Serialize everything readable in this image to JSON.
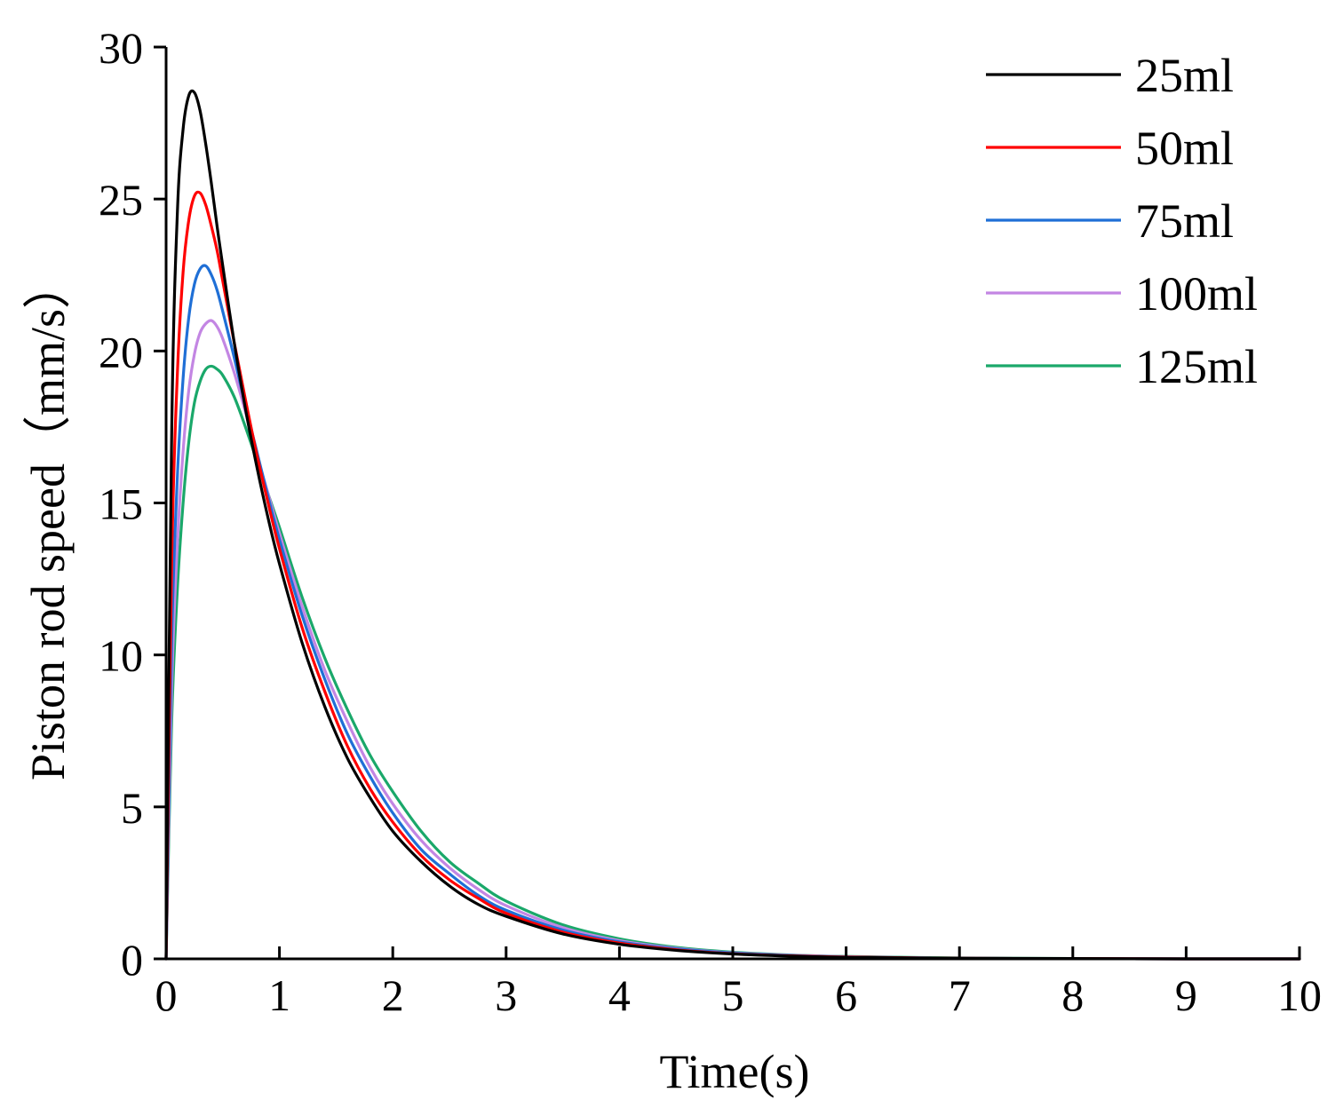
{
  "chart_data": {
    "type": "line",
    "title": "",
    "xlabel": "Time(s)",
    "ylabel": "Piston rod speed（mm/s）",
    "xlim": [
      0,
      10
    ],
    "ylim": [
      0,
      30
    ],
    "x_ticks": [
      "0",
      "1",
      "2",
      "3",
      "4",
      "5",
      "6",
      "7",
      "8",
      "9",
      "10"
    ],
    "y_ticks": [
      "0",
      "5",
      "10",
      "15",
      "20",
      "25",
      "30"
    ],
    "legend_position": "top-right",
    "grid": false,
    "x": [
      0,
      0.05,
      0.1,
      0.15,
      0.2,
      0.25,
      0.3,
      0.35,
      0.4,
      0.45,
      0.5,
      0.6,
      0.7,
      0.8,
      0.9,
      1.0,
      1.2,
      1.4,
      1.6,
      1.8,
      2.0,
      2.25,
      2.5,
      2.75,
      3.0,
      3.5,
      4.0,
      4.5,
      5.0,
      5.5,
      6.0,
      7.0,
      8.0,
      9.0,
      10.0
    ],
    "series": [
      {
        "name": "25ml",
        "color": "#000000",
        "values": [
          0,
          17.5,
          24.6,
          27.3,
          28.4,
          28.5,
          27.9,
          26.8,
          25.5,
          24.1,
          22.8,
          20.3,
          18.1,
          16.2,
          14.5,
          13.0,
          10.4,
          8.3,
          6.6,
          5.3,
          4.2,
          3.2,
          2.4,
          1.8,
          1.4,
          0.82,
          0.48,
          0.28,
          0.16,
          0.09,
          0.05,
          0.02,
          0.01,
          0.0,
          0.0
        ]
      },
      {
        "name": "50ml",
        "color": "#ff0000",
        "values": [
          0,
          13.2,
          19.3,
          22.6,
          24.3,
          25.1,
          25.2,
          24.8,
          24.1,
          23.3,
          22.3,
          20.3,
          18.4,
          16.6,
          15.0,
          13.5,
          10.9,
          8.8,
          7.0,
          5.6,
          4.5,
          3.4,
          2.6,
          2.0,
          1.5,
          0.88,
          0.52,
          0.3,
          0.17,
          0.1,
          0.06,
          0.02,
          0.01,
          0.0,
          0.0
        ]
      },
      {
        "name": "75ml",
        "color": "#1f6fd6",
        "values": [
          0,
          10.6,
          15.9,
          19.1,
          21.1,
          22.2,
          22.7,
          22.8,
          22.5,
          22.0,
          21.3,
          19.8,
          18.2,
          16.7,
          15.2,
          13.8,
          11.3,
          9.2,
          7.4,
          6.0,
          4.8,
          3.6,
          2.8,
          2.1,
          1.6,
          0.95,
          0.56,
          0.33,
          0.19,
          0.11,
          0.06,
          0.02,
          0.01,
          0.0,
          0.0
        ]
      },
      {
        "name": "100ml",
        "color": "#c386e3",
        "values": [
          0,
          9.0,
          13.7,
          16.7,
          18.7,
          19.9,
          20.6,
          20.9,
          21.0,
          20.8,
          20.4,
          19.3,
          18.0,
          16.6,
          15.3,
          14.0,
          11.6,
          9.5,
          7.8,
          6.3,
          5.1,
          3.9,
          3.0,
          2.3,
          1.75,
          1.03,
          0.6,
          0.35,
          0.2,
          0.12,
          0.07,
          0.02,
          0.01,
          0.0,
          0.0
        ]
      },
      {
        "name": "125ml",
        "color": "#1aa86a",
        "values": [
          0,
          7.9,
          12.2,
          15.0,
          17.0,
          18.3,
          19.0,
          19.4,
          19.5,
          19.4,
          19.2,
          18.5,
          17.5,
          16.4,
          15.3,
          14.2,
          11.9,
          9.9,
          8.2,
          6.7,
          5.5,
          4.2,
          3.2,
          2.5,
          1.9,
          1.12,
          0.66,
          0.38,
          0.22,
          0.13,
          0.08,
          0.03,
          0.01,
          0.0,
          0.0
        ]
      }
    ]
  }
}
